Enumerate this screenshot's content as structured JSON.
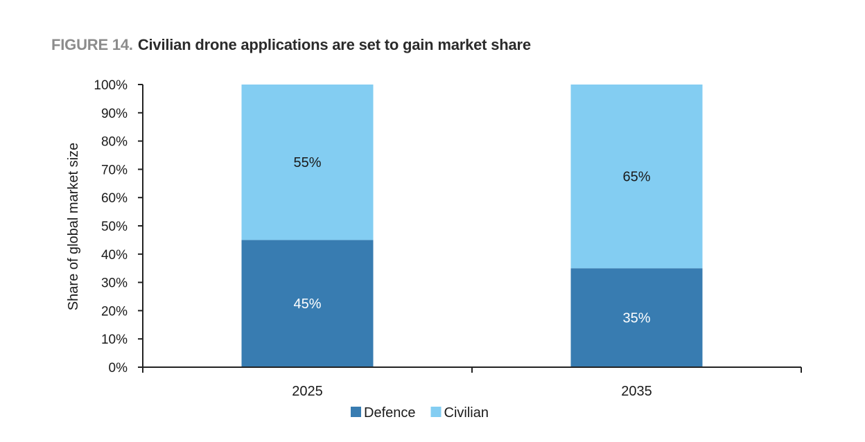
{
  "figure": {
    "label": "FIGURE 14.",
    "title": "Civilian drone applications are set to gain market share"
  },
  "colors": {
    "defence": "#387cb1",
    "civilian": "#83cdf2",
    "axis": "#222222",
    "text": "#1a1a1a"
  },
  "chart_data": {
    "type": "bar",
    "stacked": true,
    "title": "Civilian drone applications are set to gain market share",
    "xlabel": "",
    "ylabel": "Share of global market size",
    "categories": [
      "2025",
      "2035"
    ],
    "series": [
      {
        "name": "Defence",
        "values": [
          45,
          35
        ],
        "labels": [
          "45%",
          "35%"
        ]
      },
      {
        "name": "Civilian",
        "values": [
          55,
          65
        ],
        "labels": [
          "55%",
          "65%"
        ]
      }
    ],
    "ylim": [
      0,
      100
    ],
    "yticks": [
      0,
      10,
      20,
      30,
      40,
      50,
      60,
      70,
      80,
      90,
      100
    ],
    "ytick_labels": [
      "0%",
      "10%",
      "20%",
      "30%",
      "40%",
      "50%",
      "60%",
      "70%",
      "80%",
      "90%",
      "100%"
    ],
    "grid": false,
    "legend_position": "bottom-center"
  }
}
